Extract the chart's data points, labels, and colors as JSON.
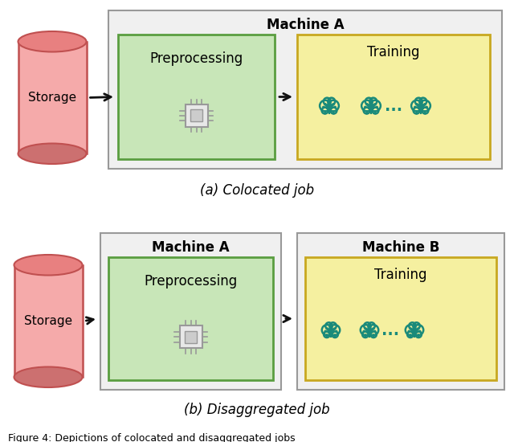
{
  "bg_color": "#ffffff",
  "storage_color_top": "#e88080",
  "storage_color_body": "#f5aaaa",
  "storage_shadow_color": "#c05050",
  "machine_box_facecolor": "#f0f0f0",
  "machine_box_edgecolor": "#999999",
  "preprocessing_box_color": "#c8e6b8",
  "preprocessing_box_edge": "#5a9e40",
  "training_box_color": "#f5f0a0",
  "training_box_edge": "#c8a820",
  "gpu_color": "#1a8a7a",
  "arrow_color": "#111111",
  "text_color": "#000000",
  "label_a": "(a) Colocated job",
  "label_b": "(b) Disaggregated job",
  "caption": "Figure 4: Depictions of colocated and disaggregated jobs",
  "machine_a_label": "Machine A",
  "machine_b_label": "Machine B",
  "preprocessing_label": "Preprocessing",
  "training_label": "Training",
  "storage_label": "Storage",
  "chip_color": "#999999",
  "chip_inner": "#cccccc"
}
